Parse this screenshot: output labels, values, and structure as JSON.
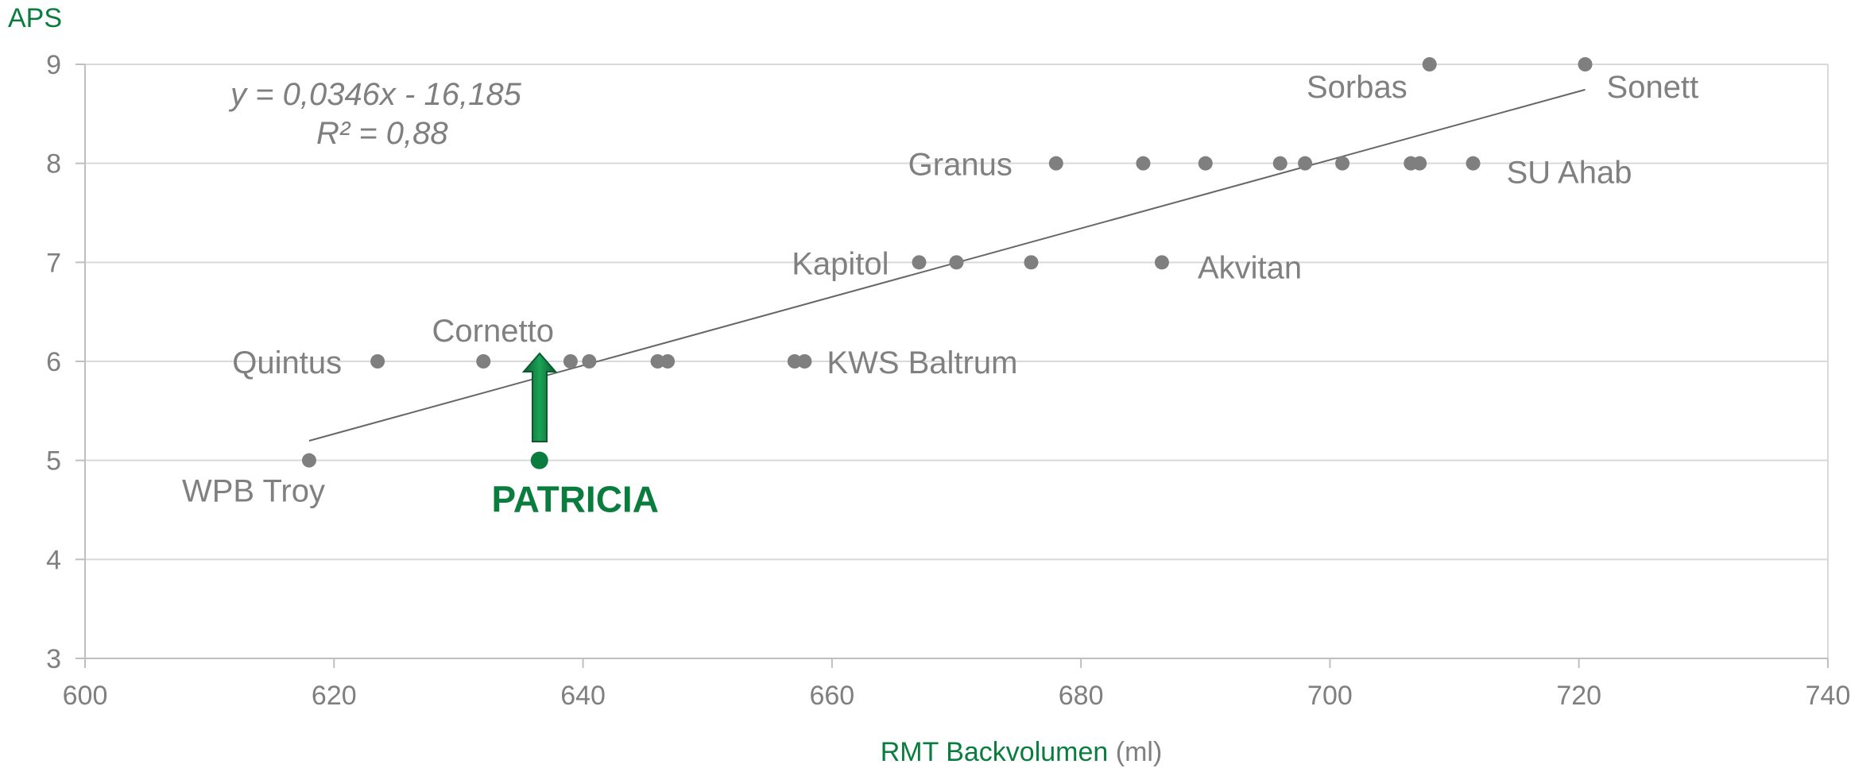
{
  "chart_data": {
    "type": "scatter",
    "ylabel": "APS",
    "xlabel_main": "RMT Backvolumen",
    "xlabel_unit": " (ml)",
    "xlim": [
      600,
      740
    ],
    "ylim": [
      3,
      9
    ],
    "x_ticks": [
      600,
      620,
      640,
      660,
      680,
      700,
      720,
      740
    ],
    "y_ticks": [
      3,
      4,
      5,
      6,
      7,
      8,
      9
    ],
    "grid": true,
    "colors": {
      "points": "#7f7f7f",
      "highlight": "#0a7d3e",
      "grid": "#d9d9d9",
      "trendline": "#666666"
    },
    "points": [
      {
        "x": 618,
        "y": 5,
        "label": "WPB Troy"
      },
      {
        "x": 623.5,
        "y": 6,
        "label": "Quintus"
      },
      {
        "x": 632,
        "y": 6,
        "label": "Cornetto"
      },
      {
        "x": 639,
        "y": 6,
        "label": ""
      },
      {
        "x": 640.5,
        "y": 6,
        "label": ""
      },
      {
        "x": 646,
        "y": 6,
        "label": ""
      },
      {
        "x": 646.8,
        "y": 6,
        "label": ""
      },
      {
        "x": 657,
        "y": 6,
        "label": ""
      },
      {
        "x": 657.8,
        "y": 6,
        "label": "KWS Baltrum"
      },
      {
        "x": 667,
        "y": 7,
        "label": "Kapitol"
      },
      {
        "x": 670,
        "y": 7,
        "label": ""
      },
      {
        "x": 676,
        "y": 7,
        "label": ""
      },
      {
        "x": 686.5,
        "y": 7,
        "label": "Akvitan"
      },
      {
        "x": 678,
        "y": 8,
        "label": "Granus"
      },
      {
        "x": 685,
        "y": 8,
        "label": ""
      },
      {
        "x": 690,
        "y": 8,
        "label": ""
      },
      {
        "x": 696,
        "y": 8,
        "label": ""
      },
      {
        "x": 698,
        "y": 8,
        "label": ""
      },
      {
        "x": 701,
        "y": 8,
        "label": ""
      },
      {
        "x": 706.5,
        "y": 8,
        "label": ""
      },
      {
        "x": 707.2,
        "y": 8,
        "label": ""
      },
      {
        "x": 711.5,
        "y": 8,
        "label": "SU Ahab"
      },
      {
        "x": 708,
        "y": 9,
        "label": "Sorbas"
      },
      {
        "x": 720.5,
        "y": 9,
        "label": "Sonett"
      }
    ],
    "highlight": {
      "x": 636.5,
      "y": 5,
      "label": "PATRICIA"
    },
    "trendline": {
      "equation": "y = 0,0346x - 16,185",
      "r2": "R² = 0,88",
      "slope": 0.0346,
      "intercept": -16.185,
      "x_from": 618,
      "x_to": 720.5
    }
  }
}
